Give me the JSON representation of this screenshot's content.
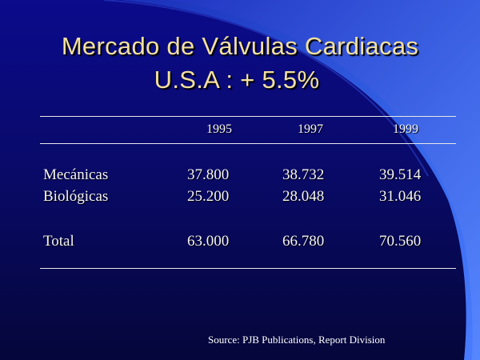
{
  "title": {
    "line1": "Mercado de Válvulas Cardiacas",
    "line2": "U.S.A : + 5.5%"
  },
  "table": {
    "headers": [
      "1995",
      "1997",
      "1999"
    ],
    "rows": [
      {
        "label": "Mecánicas",
        "values": [
          "37.800",
          "38.732",
          "39.514"
        ]
      },
      {
        "label": "Biológicas",
        "values": [
          "25.200",
          "28.048",
          "31.046"
        ]
      },
      {
        "label": "Total",
        "values": [
          "63.000",
          "66.780",
          "70.560"
        ]
      }
    ]
  },
  "source": "Source: PJB Publications, Report Division",
  "colors": {
    "background": "#0b0b8c",
    "swoosh": "#3a6cf0",
    "title": "#f2e0a0",
    "text": "#f4f4f4"
  }
}
